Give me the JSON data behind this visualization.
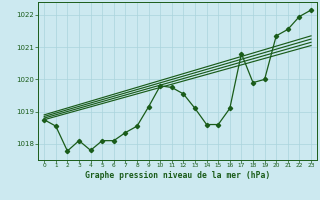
{
  "xlabel": "Graphe pression niveau de la mer (hPa)",
  "ylim": [
    1017.5,
    1022.4
  ],
  "xlim": [
    -0.5,
    23.5
  ],
  "yticks": [
    1018,
    1019,
    1020,
    1021,
    1022
  ],
  "xticks": [
    0,
    1,
    2,
    3,
    4,
    5,
    6,
    7,
    8,
    9,
    10,
    11,
    12,
    13,
    14,
    15,
    16,
    17,
    18,
    19,
    20,
    21,
    22,
    23
  ],
  "background_color": "#cce9f0",
  "grid_color": "#aad4dd",
  "line_color": "#1a5c1a",
  "series1": [
    1018.75,
    1018.55,
    1017.78,
    1018.1,
    1017.8,
    1018.1,
    1018.1,
    1018.35,
    1018.55,
    1019.15,
    1019.8,
    1019.75,
    1019.55,
    1019.1,
    1018.6,
    1018.6,
    1019.1,
    1020.8,
    1019.9,
    1020.0,
    1021.35,
    1021.55,
    1021.95,
    1022.15
  ],
  "trend1_x": [
    0,
    23
  ],
  "trend1_y": [
    1018.75,
    1021.05
  ],
  "trend2_x": [
    0,
    23
  ],
  "trend2_y": [
    1018.8,
    1021.15
  ],
  "trend3_x": [
    0,
    23
  ],
  "trend3_y": [
    1018.85,
    1021.25
  ],
  "trend4_x": [
    0,
    23
  ],
  "trend4_y": [
    1018.9,
    1021.35
  ]
}
